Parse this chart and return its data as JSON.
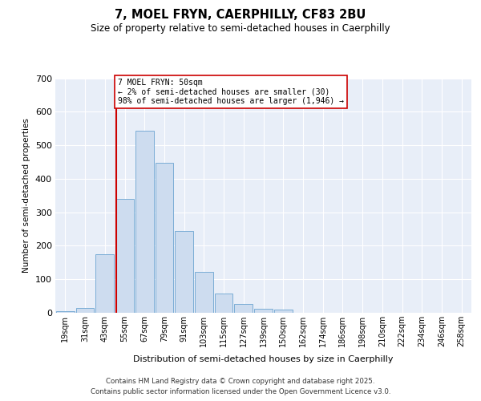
{
  "title1": "7, MOEL FRYN, CAERPHILLY, CF83 2BU",
  "title2": "Size of property relative to semi-detached houses in Caerphilly",
  "xlabel": "Distribution of semi-detached houses by size in Caerphilly",
  "ylabel": "Number of semi-detached properties",
  "bins_labels": [
    "19sqm",
    "31sqm",
    "43sqm",
    "55sqm",
    "67sqm",
    "79sqm",
    "91sqm",
    "103sqm",
    "115sqm",
    "127sqm",
    "139sqm",
    "150sqm",
    "162sqm",
    "174sqm",
    "186sqm",
    "198sqm",
    "210sqm",
    "222sqm",
    "234sqm",
    "246sqm",
    "258sqm"
  ],
  "bar_values": [
    5,
    15,
    175,
    340,
    543,
    447,
    243,
    122,
    57,
    27,
    12,
    10,
    0,
    0,
    0,
    0,
    0,
    0,
    0,
    0,
    0
  ],
  "property_line_x": 2.58,
  "annotation_text": "7 MOEL FRYN: 50sqm\n← 2% of semi-detached houses are smaller (30)\n98% of semi-detached houses are larger (1,946) →",
  "bar_color": "#cddcef",
  "bar_edge_color": "#7badd6",
  "line_color": "#cc0000",
  "bg_color": "#e8eef8",
  "ylim": [
    0,
    700
  ],
  "yticks": [
    0,
    100,
    200,
    300,
    400,
    500,
    600,
    700
  ],
  "footer1": "Contains HM Land Registry data © Crown copyright and database right 2025.",
  "footer2": "Contains public sector information licensed under the Open Government Licence v3.0."
}
